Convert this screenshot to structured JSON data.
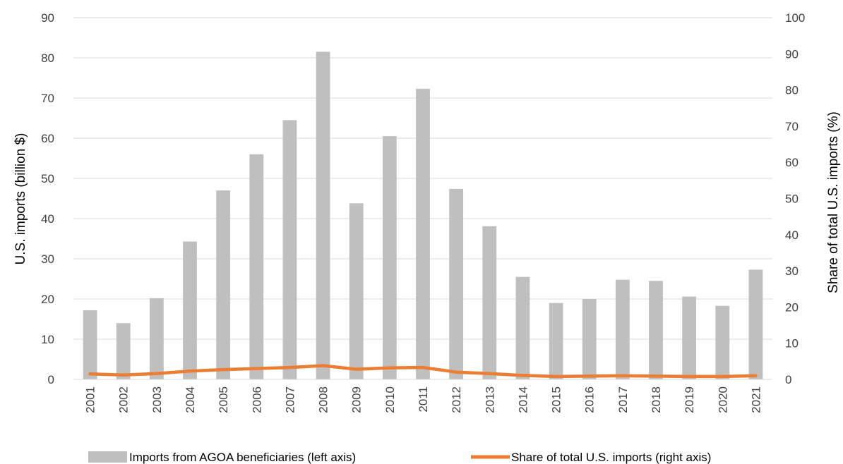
{
  "chart_data": {
    "type": "bar",
    "categories": [
      "2001",
      "2002",
      "2003",
      "2004",
      "2005",
      "2006",
      "2007",
      "2008",
      "2009",
      "2010",
      "2011",
      "2012",
      "2013",
      "2014",
      "2015",
      "2016",
      "2017",
      "2018",
      "2019",
      "2020",
      "2021"
    ],
    "series": [
      {
        "name": "Imports from AGOA beneficiaries (left axis)",
        "type": "bar",
        "axis": "left",
        "color": "#bfbfbf",
        "values": [
          17.2,
          14.0,
          20.2,
          34.3,
          47.0,
          56.0,
          64.5,
          81.5,
          43.8,
          60.5,
          72.3,
          47.4,
          38.1,
          25.5,
          19.0,
          20.0,
          24.8,
          24.5,
          20.6,
          18.3,
          27.3
        ]
      },
      {
        "name": "Share of total U.S. imports (right axis)",
        "type": "line",
        "axis": "right",
        "color": "#ed7d31",
        "values": [
          1.5,
          1.2,
          1.6,
          2.3,
          2.7,
          3.0,
          3.3,
          3.8,
          2.8,
          3.2,
          3.3,
          2.0,
          1.6,
          1.1,
          0.8,
          0.9,
          1.0,
          0.9,
          0.8,
          0.8,
          1.0
        ]
      }
    ],
    "ylabel_left": "U.S. imports (billion $)",
    "ylabel_right": "Share of total U.S. imports (%)",
    "ylim_left": [
      0,
      90
    ],
    "yticks_left": [
      0,
      10,
      20,
      30,
      40,
      50,
      60,
      70,
      80,
      90
    ],
    "ylim_right": [
      0,
      100
    ],
    "yticks_right": [
      0,
      10,
      20,
      30,
      40,
      50,
      60,
      70,
      80,
      90,
      100
    ],
    "grid": true,
    "legend_position": "bottom"
  }
}
